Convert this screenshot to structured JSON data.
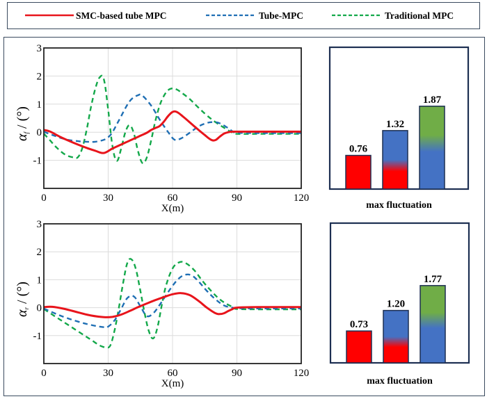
{
  "legend": {
    "entries": [
      {
        "label": "SMC-based tube MPC",
        "color": "#e8141b",
        "style": "solid"
      },
      {
        "label": "Tube-MPC",
        "color": "#1f6fb4",
        "style": "dashed"
      },
      {
        "label": "Traditional MPC",
        "color": "#13a84a",
        "style": "dashed"
      }
    ]
  },
  "chart_data": [
    {
      "type": "line",
      "name": "front-wheel-sideslip",
      "ylabel": "α_f / (°)",
      "ylabel_symbol": "α",
      "ylabel_sub": "f",
      "ylabel_rest": " / (°)",
      "xlabel": "X(m)",
      "xlim": [
        0,
        120
      ],
      "ylim": [
        -2,
        3
      ],
      "xticks": [
        0,
        30,
        60,
        90,
        120
      ],
      "yticks": [
        3,
        2,
        1,
        0,
        -1
      ],
      "grid": true,
      "series": [
        {
          "name": "SMC-based tube MPC",
          "color": "#e8141b",
          "style": "solid",
          "x": [
            0,
            3,
            8,
            14,
            20,
            24,
            28,
            32,
            36,
            40,
            44,
            48,
            50,
            52,
            54,
            56,
            58,
            60,
            62,
            65,
            70,
            75,
            78,
            80,
            82,
            84,
            86,
            88,
            90,
            100,
            110,
            120
          ],
          "y": [
            0.08,
            0.02,
            -0.18,
            -0.38,
            -0.56,
            -0.66,
            -0.74,
            -0.58,
            -0.44,
            -0.3,
            -0.16,
            -0.02,
            0.08,
            0.15,
            0.22,
            0.38,
            0.58,
            0.72,
            0.72,
            0.55,
            0.22,
            -0.1,
            -0.27,
            -0.28,
            -0.16,
            -0.05,
            0.0,
            0.02,
            0.02,
            0.02,
            0.02,
            0.02
          ]
        },
        {
          "name": "Tube-MPC",
          "color": "#1f6fb4",
          "style": "dashed",
          "x": [
            0,
            4,
            10,
            16,
            20,
            24,
            28,
            30,
            32,
            35,
            40,
            44,
            46,
            50,
            54,
            58,
            61,
            64,
            68,
            72,
            76,
            79,
            82,
            86,
            88,
            90,
            100,
            110,
            120
          ],
          "y": [
            0.02,
            -0.1,
            -0.25,
            -0.32,
            -0.34,
            -0.34,
            -0.27,
            -0.18,
            0.0,
            0.42,
            1.1,
            1.32,
            1.3,
            0.95,
            0.45,
            0.0,
            -0.27,
            -0.22,
            -0.02,
            0.2,
            0.33,
            0.36,
            0.32,
            0.14,
            0.03,
            -0.02,
            -0.03,
            -0.03,
            -0.03
          ]
        },
        {
          "name": "Traditional MPC",
          "color": "#13a84a",
          "style": "dashed",
          "x": [
            0,
            3,
            6,
            10,
            14,
            16,
            18,
            20,
            22,
            24,
            26,
            28,
            30,
            32,
            34,
            36,
            38,
            40,
            42,
            44,
            46,
            48,
            50,
            52,
            54,
            56,
            58,
            60,
            62,
            64,
            68,
            72,
            76,
            80,
            84,
            88,
            90,
            100,
            110,
            120
          ],
          "y": [
            -0.05,
            -0.3,
            -0.55,
            -0.8,
            -0.9,
            -0.88,
            -0.55,
            0.1,
            0.9,
            1.55,
            1.95,
            1.88,
            0.8,
            -0.5,
            -1.02,
            -0.6,
            0.0,
            0.25,
            -0.05,
            -0.7,
            -1.1,
            -0.9,
            -0.3,
            0.4,
            0.95,
            1.3,
            1.5,
            1.56,
            1.52,
            1.42,
            1.18,
            0.88,
            0.6,
            0.36,
            0.16,
            -0.02,
            -0.06,
            -0.06,
            -0.06,
            -0.06
          ]
        }
      ]
    },
    {
      "type": "bar",
      "name": "max-fluctuation-front",
      "xlabel": "max fluctuation",
      "categories": [
        "SMC-based tube MPC",
        "Tube-MPC",
        "Traditional MPC"
      ],
      "values": [
        0.76,
        1.32,
        1.87
      ],
      "value_labels": [
        "0.76",
        "1.32",
        "1.87"
      ],
      "bar_colors": [
        {
          "top": "#ff0000",
          "bottom": "#ff0000"
        },
        {
          "top": "#4472c4",
          "bottom": "#ff0000"
        },
        {
          "top": "#70ad47",
          "bottom": "#4472c4"
        }
      ],
      "ylim": [
        0,
        3.2
      ]
    },
    {
      "type": "line",
      "name": "rear-wheel-sideslip",
      "ylabel": "α_r / (°)",
      "ylabel_symbol": "α",
      "ylabel_sub": "r",
      "ylabel_rest": " / (°)",
      "xlabel": "X(m)",
      "xlim": [
        0,
        120
      ],
      "ylim": [
        -2,
        3
      ],
      "xticks": [
        0,
        30,
        60,
        90,
        120
      ],
      "yticks": [
        3,
        2,
        1,
        0,
        -1
      ],
      "grid": true,
      "series": [
        {
          "name": "SMC-based tube MPC",
          "color": "#e8141b",
          "style": "solid",
          "x": [
            0,
            4,
            10,
            16,
            22,
            28,
            32,
            36,
            40,
            44,
            48,
            52,
            56,
            60,
            64,
            68,
            72,
            76,
            80,
            82,
            84,
            86,
            88,
            90,
            100,
            110,
            120
          ],
          "y": [
            0.02,
            0.03,
            -0.05,
            -0.17,
            -0.28,
            -0.34,
            -0.33,
            -0.25,
            -0.12,
            0.02,
            0.15,
            0.27,
            0.38,
            0.48,
            0.52,
            0.45,
            0.25,
            0.0,
            -0.2,
            -0.23,
            -0.2,
            -0.12,
            -0.05,
            0.0,
            0.02,
            0.02,
            0.02
          ]
        },
        {
          "name": "Tube-MPC",
          "color": "#1f6fb4",
          "style": "dashed",
          "x": [
            0,
            5,
            10,
            16,
            22,
            28,
            30,
            33,
            36,
            39,
            42,
            45,
            48,
            51,
            54,
            57,
            60,
            63,
            66,
            69,
            72,
            76,
            80,
            84,
            88,
            90,
            100,
            110,
            120
          ],
          "y": [
            -0.03,
            -0.2,
            -0.35,
            -0.5,
            -0.62,
            -0.7,
            -0.68,
            -0.45,
            -0.05,
            0.35,
            0.4,
            0.05,
            -0.3,
            -0.2,
            0.1,
            0.45,
            0.78,
            1.05,
            1.18,
            1.15,
            0.95,
            0.6,
            0.3,
            0.08,
            0.0,
            -0.02,
            -0.03,
            -0.03,
            -0.03
          ]
        },
        {
          "name": "Traditional MPC",
          "color": "#13a84a",
          "style": "dashed",
          "x": [
            0,
            5,
            10,
            16,
            22,
            26,
            29,
            31,
            33,
            35,
            37,
            39,
            41,
            43,
            45,
            47,
            49,
            51,
            53,
            55,
            57,
            60,
            63,
            66,
            70,
            74,
            78,
            82,
            86,
            89,
            90,
            100,
            110,
            120
          ],
          "y": [
            -0.05,
            -0.3,
            -0.55,
            -0.85,
            -1.15,
            -1.35,
            -1.42,
            -1.35,
            -0.8,
            0.0,
            0.9,
            1.62,
            1.72,
            1.35,
            0.6,
            -0.2,
            -0.85,
            -1.1,
            -0.7,
            0.1,
            0.8,
            1.4,
            1.62,
            1.6,
            1.35,
            0.95,
            0.6,
            0.3,
            0.1,
            0.0,
            -0.05,
            -0.06,
            -0.06,
            -0.06
          ]
        }
      ]
    },
    {
      "type": "bar",
      "name": "max-fluctuation-rear",
      "xlabel": "max fluctuation",
      "categories": [
        "SMC-based tube MPC",
        "Tube-MPC",
        "Traditional MPC"
      ],
      "values": [
        0.73,
        1.2,
        1.77
      ],
      "value_labels": [
        "0.73",
        "1.20",
        "1.77"
      ],
      "bar_colors": [
        {
          "top": "#ff0000",
          "bottom": "#ff0000"
        },
        {
          "top": "#4472c4",
          "bottom": "#ff0000"
        },
        {
          "top": "#70ad47",
          "bottom": "#4472c4"
        }
      ],
      "ylim": [
        0,
        3.2
      ]
    }
  ]
}
